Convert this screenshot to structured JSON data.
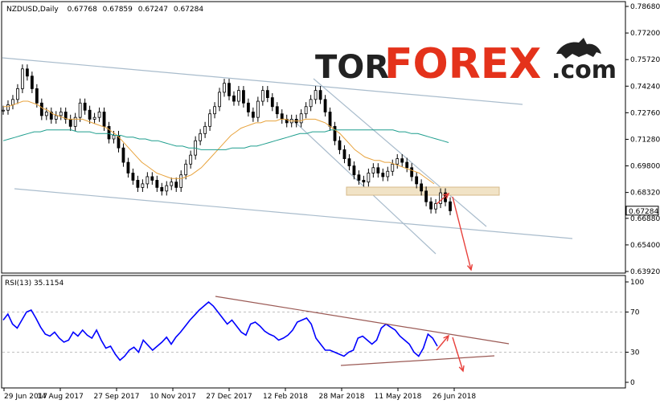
{
  "header": {
    "symbol": "NZDUSD,Daily",
    "open": "0.67768",
    "high": "0.67859",
    "low": "0.67247",
    "close": "0.67284"
  },
  "logo": {
    "part1": "TOR",
    "part2": "FOREX",
    "part3": ".com",
    "icon": "bull-bear-icon"
  },
  "colors": {
    "candle": "#000000",
    "ma_fast": "#e8a33d",
    "ma_slow": "#1f9e8e",
    "channel": "#a9bccc",
    "zone": "#f1e3c6",
    "arrow": "#e8413c",
    "rsi": "#0000ff",
    "rsi_trend": "#9b5a55",
    "grid": "#c0c0c0"
  },
  "chart_data": [
    {
      "type": "candlestick",
      "name": "NZDUSD Daily price",
      "ylim": [
        0.6392,
        0.7868
      ],
      "y_ticks": [
        "0.78680",
        "0.77200",
        "0.75720",
        "0.74240",
        "0.72760",
        "0.71280",
        "0.69800",
        "0.68320",
        "0.66880",
        "0.65400",
        "0.63920"
      ],
      "last_price": "0.67284",
      "x_labels": [
        "29 Jun 2017",
        "14 Aug 2017",
        "27 Sep 2017",
        "10 Nov 2017",
        "27 Dec 2017",
        "12 Feb 2018",
        "28 Mar 2018",
        "11 May 2018",
        "26 Jun 2018"
      ],
      "close_series": [
        0.729,
        0.732,
        0.735,
        0.741,
        0.752,
        0.748,
        0.741,
        0.733,
        0.726,
        0.728,
        0.724,
        0.726,
        0.728,
        0.724,
        0.72,
        0.725,
        0.733,
        0.729,
        0.724,
        0.725,
        0.728,
        0.72,
        0.713,
        0.715,
        0.708,
        0.7,
        0.694,
        0.69,
        0.686,
        0.688,
        0.692,
        0.69,
        0.686,
        0.684,
        0.687,
        0.689,
        0.686,
        0.693,
        0.699,
        0.704,
        0.712,
        0.716,
        0.72,
        0.727,
        0.731,
        0.739,
        0.744,
        0.737,
        0.734,
        0.74,
        0.733,
        0.728,
        0.725,
        0.734,
        0.74,
        0.736,
        0.731,
        0.727,
        0.724,
        0.722,
        0.724,
        0.722,
        0.727,
        0.731,
        0.735,
        0.74,
        0.735,
        0.728,
        0.72,
        0.712,
        0.707,
        0.702,
        0.698,
        0.693,
        0.69,
        0.689,
        0.694,
        0.697,
        0.694,
        0.692,
        0.695,
        0.699,
        0.702,
        0.7,
        0.697,
        0.692,
        0.688,
        0.684,
        0.678,
        0.674,
        0.677,
        0.683,
        0.678,
        0.673
      ],
      "ma_fast_series": [
        0.731,
        0.731,
        0.732,
        0.733,
        0.734,
        0.734,
        0.733,
        0.732,
        0.73,
        0.729,
        0.727,
        0.726,
        0.725,
        0.724,
        0.724,
        0.724,
        0.724,
        0.723,
        0.722,
        0.721,
        0.72,
        0.719,
        0.717,
        0.715,
        0.712,
        0.709,
        0.706,
        0.703,
        0.7,
        0.698,
        0.696,
        0.694,
        0.693,
        0.692,
        0.691,
        0.691,
        0.691,
        0.692,
        0.693,
        0.695,
        0.697,
        0.7,
        0.703,
        0.706,
        0.709,
        0.712,
        0.715,
        0.717,
        0.719,
        0.72,
        0.721,
        0.722,
        0.722,
        0.723,
        0.723,
        0.723,
        0.724,
        0.724,
        0.723,
        0.723,
        0.723,
        0.724,
        0.724,
        0.724,
        0.723,
        0.722,
        0.72,
        0.718,
        0.716,
        0.713,
        0.71,
        0.707,
        0.705,
        0.703,
        0.702,
        0.701,
        0.701,
        0.7,
        0.7,
        0.699,
        0.698,
        0.697,
        0.696,
        0.695,
        0.694,
        0.692,
        0.69,
        0.688
      ],
      "ma_slow_series": [
        0.712,
        0.713,
        0.714,
        0.715,
        0.716,
        0.717,
        0.717,
        0.718,
        0.718,
        0.718,
        0.718,
        0.718,
        0.717,
        0.717,
        0.717,
        0.716,
        0.716,
        0.716,
        0.715,
        0.715,
        0.714,
        0.714,
        0.713,
        0.713,
        0.712,
        0.712,
        0.711,
        0.71,
        0.709,
        0.709,
        0.708,
        0.708,
        0.707,
        0.707,
        0.707,
        0.707,
        0.707,
        0.708,
        0.708,
        0.708,
        0.709,
        0.709,
        0.71,
        0.711,
        0.712,
        0.713,
        0.714,
        0.715,
        0.716,
        0.716,
        0.717,
        0.717,
        0.717,
        0.718,
        0.718,
        0.718,
        0.718,
        0.718,
        0.718,
        0.718,
        0.718,
        0.718,
        0.718,
        0.718,
        0.717,
        0.717,
        0.716,
        0.716,
        0.715,
        0.714,
        0.713,
        0.712,
        0.711
      ]
    },
    {
      "type": "line",
      "name": "RSI(13) 35.1154",
      "ylim": [
        0,
        100
      ],
      "y_ticks": [
        "100",
        "70",
        "30",
        "0"
      ],
      "levels": [
        70,
        30
      ],
      "values": [
        62,
        68,
        58,
        54,
        62,
        70,
        72,
        64,
        55,
        48,
        46,
        50,
        44,
        40,
        42,
        50,
        46,
        52,
        47,
        44,
        52,
        42,
        34,
        36,
        28,
        22,
        26,
        32,
        35,
        30,
        42,
        37,
        32,
        36,
        40,
        45,
        38,
        45,
        50,
        56,
        62,
        67,
        72,
        76,
        80,
        76,
        70,
        64,
        58,
        62,
        56,
        50,
        47,
        58,
        60,
        56,
        51,
        48,
        46,
        42,
        44,
        47,
        52,
        60,
        62,
        64,
        58,
        44,
        38,
        32,
        32,
        30,
        28,
        26,
        30,
        32,
        44,
        46,
        42,
        38,
        42,
        54,
        58,
        55,
        52,
        46,
        42,
        38,
        30,
        26,
        34,
        48,
        44,
        36
      ]
    }
  ]
}
